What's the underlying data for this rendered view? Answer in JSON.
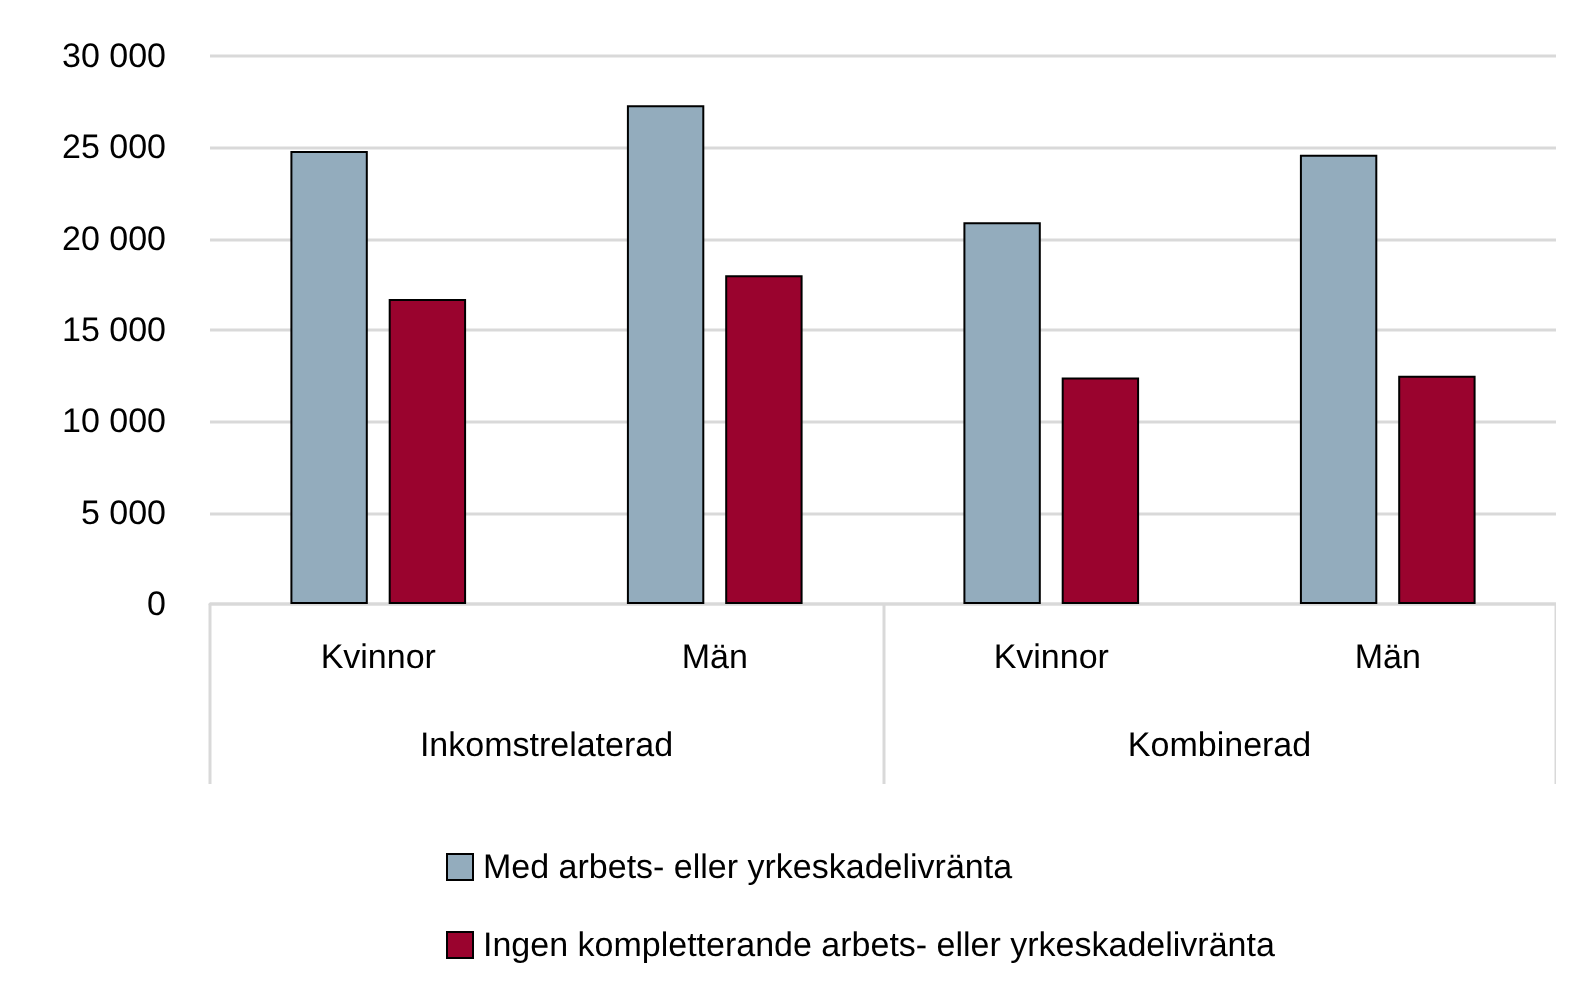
{
  "chart_data": {
    "type": "bar",
    "categories": [
      "Kvinnor",
      "Män",
      "Kvinnor",
      "Män"
    ],
    "series": [
      {
        "name": "Med arbets- eller yrkeskadelivränta",
        "color": "#93acbd",
        "values": [
          24800,
          27300,
          20900,
          24600
        ]
      },
      {
        "name": "Ingen kompletterande arbets- eller yrkeskadelivränta",
        "color": "#9a032e",
        "values": [
          16700,
          18000,
          12400,
          12500
        ]
      }
    ],
    "annotations": [
      "Inkomstrelaterad",
      "Kombinerad"
    ],
    "ylim": [
      0,
      30000
    ],
    "yticks": [
      {
        "value": 0,
        "label": "0"
      },
      {
        "value": 5000,
        "label": "5 000"
      },
      {
        "value": 10000,
        "label": "10 000"
      },
      {
        "value": 15000,
        "label": "15 000"
      },
      {
        "value": 20000,
        "label": "20 000"
      },
      {
        "value": 25000,
        "label": "25 000"
      },
      {
        "value": 30000,
        "label": "30 000"
      }
    ],
    "grid": "y",
    "legend": "bottom"
  }
}
